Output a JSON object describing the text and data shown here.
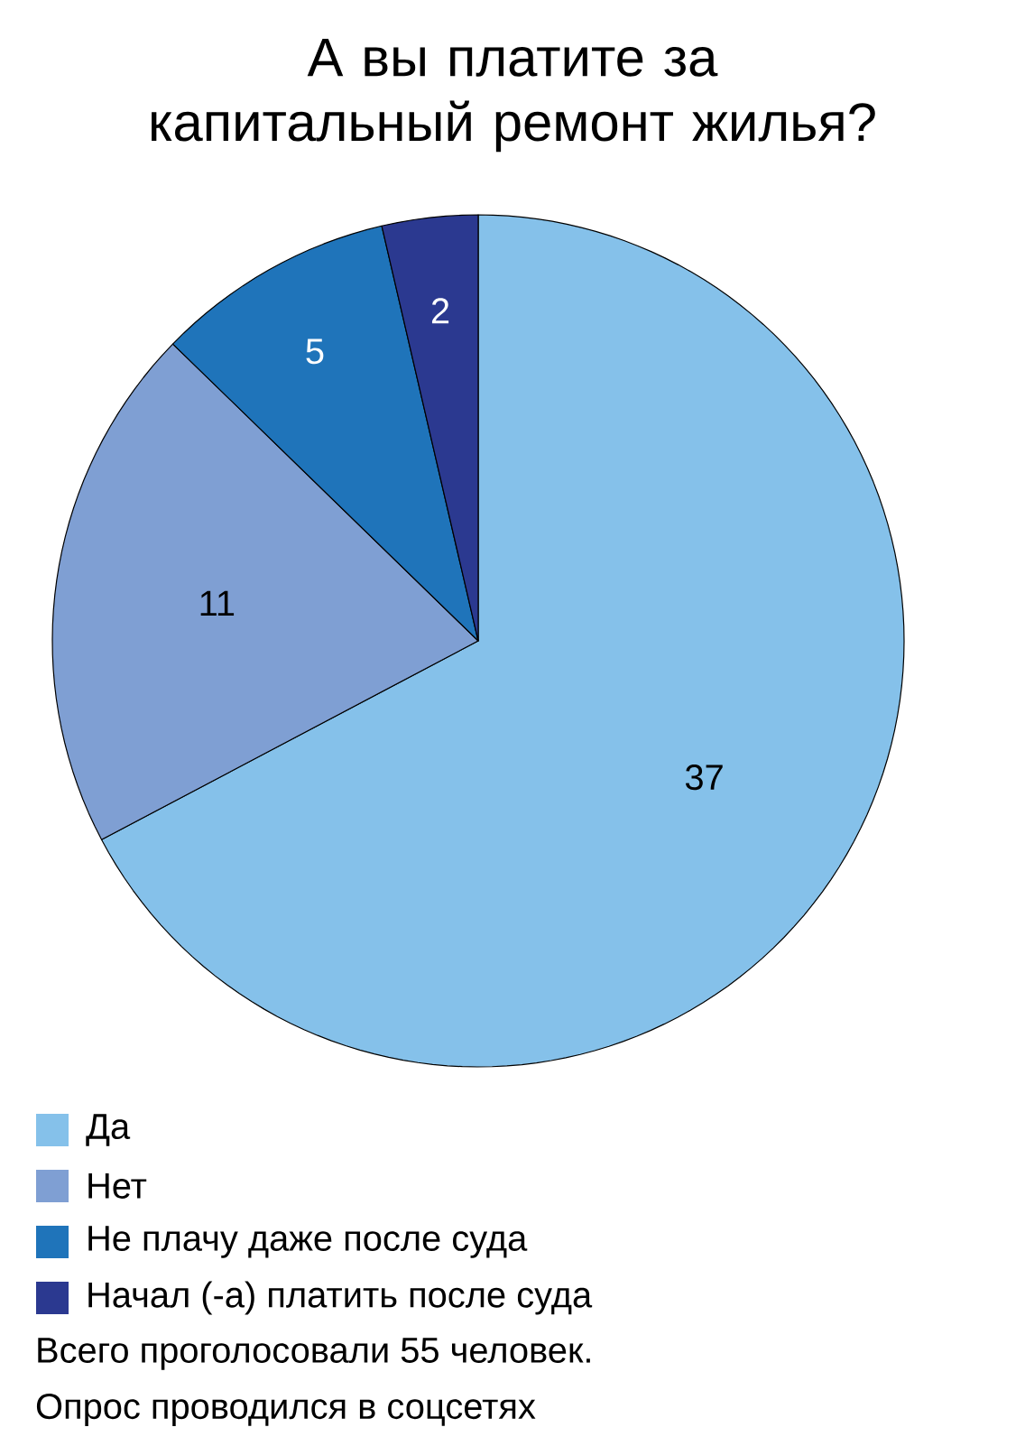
{
  "chart_data": {
    "type": "pie",
    "title": "А вы платите за капитальный ремонт жилья?",
    "categories": [
      "Да",
      "Нет",
      "Не плачу даже после суда",
      "Начал (-а) платить после суда"
    ],
    "values": [
      37,
      11,
      5,
      2
    ],
    "colors": [
      "#85c1ea",
      "#7f9fd3",
      "#1f74ba",
      "#2b3990"
    ],
    "data_labels": true,
    "legend": "bottom",
    "annotations": [
      "Всего проголосовали 55 человек.",
      "Опрос проводился в соцсетях"
    ]
  }
}
